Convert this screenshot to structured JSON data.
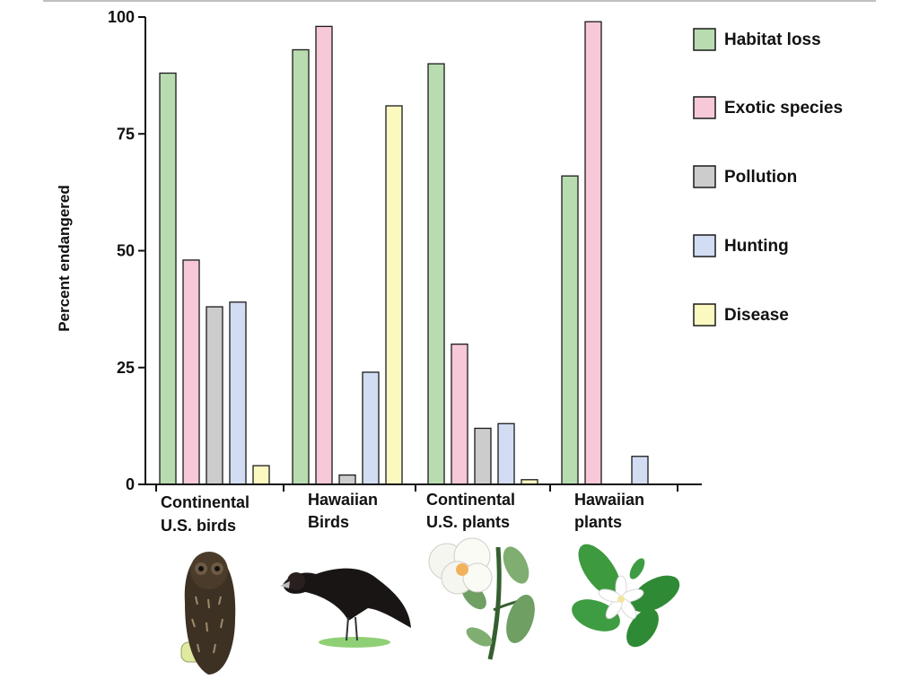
{
  "chart_data": {
    "type": "bar",
    "title": "",
    "xlabel": "",
    "ylabel": "Percent endangered",
    "ylim": [
      0,
      100
    ],
    "yticks": [
      0,
      25,
      50,
      75,
      100
    ],
    "grid": false,
    "legend_position": "right",
    "categories": [
      [
        "Continental",
        "U.S. birds"
      ],
      [
        "Hawaiian",
        "Birds"
      ],
      [
        "Continental",
        "U.S. plants"
      ],
      [
        "Hawaiian",
        "plants"
      ]
    ],
    "series": [
      {
        "name": "Habitat loss",
        "color": "#b8dcb0",
        "values": [
          88,
          93,
          90,
          66
        ]
      },
      {
        "name": "Exotic species",
        "color": "#f7c8d8",
        "values": [
          48,
          98,
          30,
          99
        ]
      },
      {
        "name": "Pollution",
        "color": "#cccccc",
        "values": [
          38,
          2,
          12,
          0
        ]
      },
      {
        "name": "Hunting",
        "color": "#d2dcf2",
        "values": [
          39,
          24,
          13,
          6
        ]
      },
      {
        "name": "Disease",
        "color": "#fbf8c0",
        "values": [
          4,
          81,
          1,
          0
        ]
      }
    ],
    "illustrations": [
      "owl-icon",
      "hawaiian-bird-icon",
      "white-flower-plant-icon",
      "gardenia-plant-icon"
    ]
  }
}
